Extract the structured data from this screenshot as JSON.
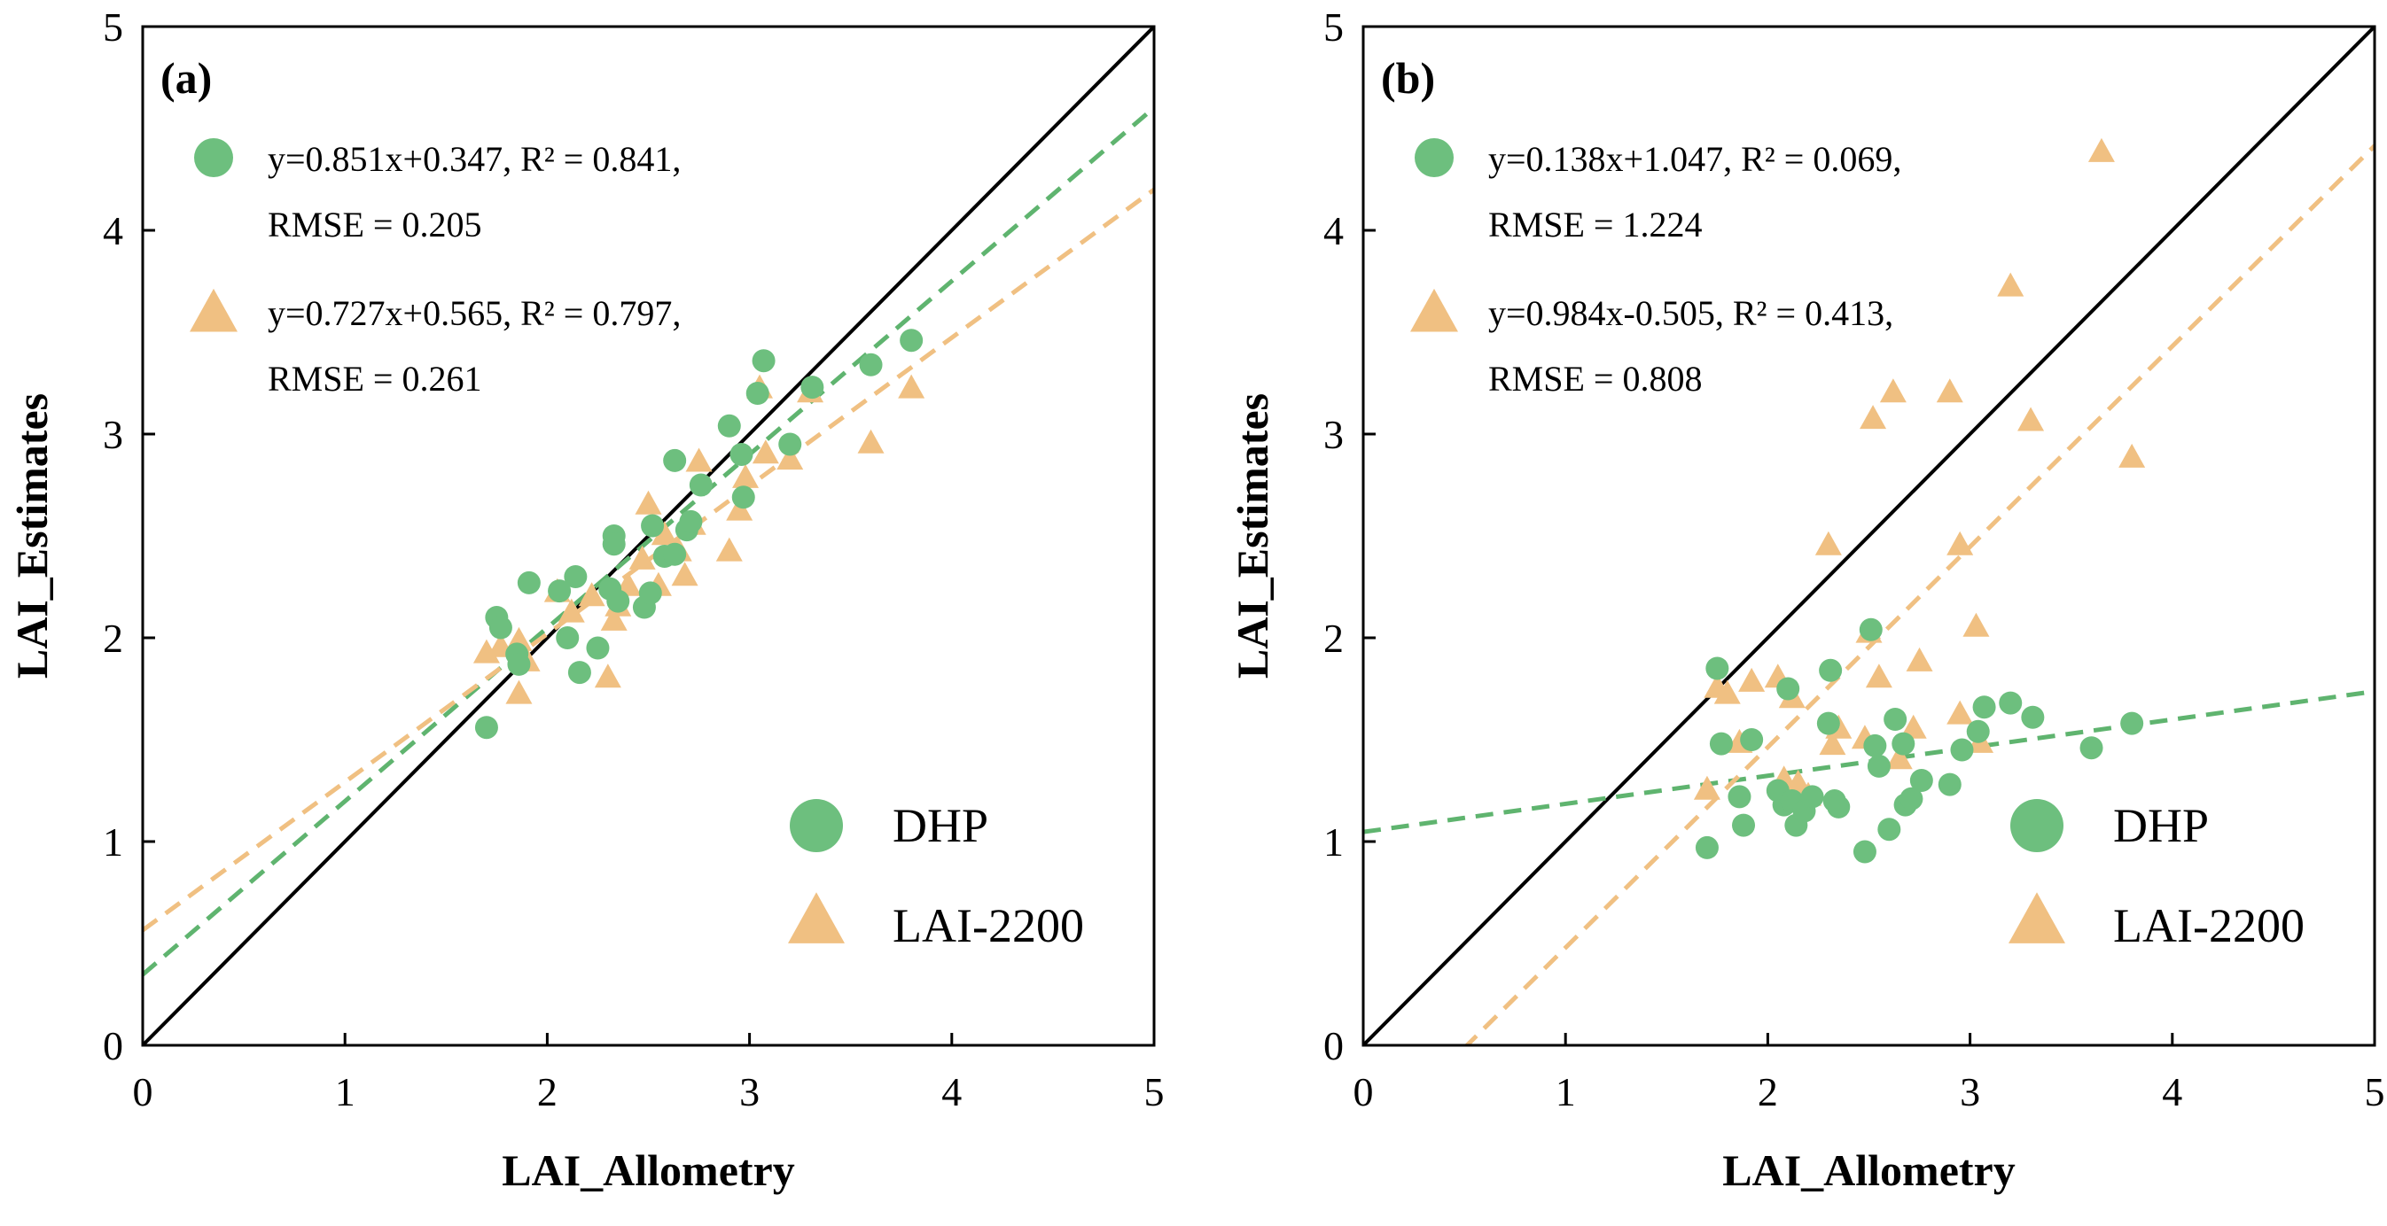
{
  "colors": {
    "dhp": "#6dbf7e",
    "lai2200": "#f0c082",
    "dhp_fit": "#5fb46f",
    "lai2200_fit": "#f0c082",
    "one_to_one": "#000000"
  },
  "legend": {
    "dhp": "DHP",
    "lai2200": "LAI-2200"
  },
  "chart_data": [
    {
      "type": "scatter",
      "panel": "(a)",
      "xlabel": "LAI_Allometry",
      "ylabel": "LAI_Estimates",
      "xlim": [
        0,
        5
      ],
      "ylim": [
        0,
        5
      ],
      "xticks": [
        "0",
        "1",
        "2",
        "3",
        "4",
        "5"
      ],
      "yticks": [
        "0",
        "1",
        "2",
        "3",
        "4",
        "5"
      ],
      "legend_position": "bottom-right",
      "one_to_one_line": true,
      "equations": {
        "dhp": {
          "line1": "y=0.851x+0.347, R² = 0.841,",
          "line2": "RMSE = 0.205",
          "slope": 0.851,
          "intercept": 0.347
        },
        "lai2200": {
          "line1": "y=0.727x+0.565, R² = 0.797,",
          "line2": "RMSE = 0.261",
          "slope": 0.727,
          "intercept": 0.565
        }
      },
      "series": [
        {
          "name": "DHP",
          "marker": "circle",
          "points": [
            [
              1.7,
              1.56
            ],
            [
              1.75,
              2.1
            ],
            [
              1.77,
              2.05
            ],
            [
              1.85,
              1.92
            ],
            [
              1.86,
              1.87
            ],
            [
              1.91,
              2.27
            ],
            [
              2.06,
              2.23
            ],
            [
              2.1,
              2.0
            ],
            [
              2.14,
              2.3
            ],
            [
              2.16,
              1.83
            ],
            [
              2.25,
              1.95
            ],
            [
              2.31,
              2.24
            ],
            [
              2.33,
              2.5
            ],
            [
              2.33,
              2.46
            ],
            [
              2.35,
              2.18
            ],
            [
              2.48,
              2.15
            ],
            [
              2.51,
              2.22
            ],
            [
              2.52,
              2.55
            ],
            [
              2.58,
              2.4
            ],
            [
              2.63,
              2.41
            ],
            [
              2.63,
              2.87
            ],
            [
              2.69,
              2.53
            ],
            [
              2.71,
              2.57
            ],
            [
              2.76,
              2.75
            ],
            [
              2.9,
              3.04
            ],
            [
              2.96,
              2.9
            ],
            [
              2.97,
              2.69
            ],
            [
              3.04,
              3.2
            ],
            [
              3.07,
              3.36
            ],
            [
              3.2,
              2.95
            ],
            [
              3.31,
              3.23
            ],
            [
              3.6,
              3.34
            ],
            [
              3.8,
              3.46
            ]
          ]
        },
        {
          "name": "LAI-2200",
          "marker": "triangle",
          "points": [
            [
              1.7,
              1.92
            ],
            [
              1.77,
              1.95
            ],
            [
              1.86,
              1.72
            ],
            [
              1.86,
              1.98
            ],
            [
              1.9,
              1.88
            ],
            [
              2.05,
              2.22
            ],
            [
              2.12,
              2.12
            ],
            [
              2.22,
              2.2
            ],
            [
              2.3,
              1.8
            ],
            [
              2.33,
              2.08
            ],
            [
              2.35,
              2.15
            ],
            [
              2.4,
              2.25
            ],
            [
              2.47,
              2.38
            ],
            [
              2.5,
              2.65
            ],
            [
              2.55,
              2.25
            ],
            [
              2.58,
              2.5
            ],
            [
              2.65,
              2.42
            ],
            [
              2.68,
              2.3
            ],
            [
              2.72,
              2.55
            ],
            [
              2.75,
              2.86
            ],
            [
              2.9,
              2.42
            ],
            [
              2.95,
              2.62
            ],
            [
              2.98,
              2.78
            ],
            [
              3.05,
              3.22
            ],
            [
              3.08,
              2.9
            ],
            [
              3.2,
              2.87
            ],
            [
              3.3,
              3.2
            ],
            [
              3.6,
              2.95
            ],
            [
              3.8,
              3.22
            ]
          ]
        }
      ]
    },
    {
      "type": "scatter",
      "panel": "(b)",
      "xlabel": "LAI_Allometry",
      "ylabel": "LAI_Estimates",
      "xlim": [
        0,
        5
      ],
      "ylim": [
        0,
        5
      ],
      "xticks": [
        "0",
        "1",
        "2",
        "3",
        "4",
        "5"
      ],
      "yticks": [
        "0",
        "1",
        "2",
        "3",
        "4",
        "5"
      ],
      "legend_position": "bottom-right",
      "one_to_one_line": true,
      "equations": {
        "dhp": {
          "line1": "y=0.138x+1.047, R² = 0.069,",
          "line2": "RMSE = 1.224",
          "slope": 0.138,
          "intercept": 1.047
        },
        "lai2200": {
          "line1": "y=0.984x-0.505, R² = 0.413,",
          "line2": "RMSE = 0.808",
          "slope": 0.984,
          "intercept": -0.505
        }
      },
      "series": [
        {
          "name": "DHP",
          "marker": "circle",
          "points": [
            [
              1.7,
              0.97
            ],
            [
              1.75,
              1.85
            ],
            [
              1.77,
              1.48
            ],
            [
              1.86,
              1.22
            ],
            [
              1.88,
              1.08
            ],
            [
              1.92,
              1.5
            ],
            [
              2.05,
              1.25
            ],
            [
              2.08,
              1.18
            ],
            [
              2.1,
              1.75
            ],
            [
              2.12,
              1.2
            ],
            [
              2.14,
              1.08
            ],
            [
              2.18,
              1.15
            ],
            [
              2.22,
              1.22
            ],
            [
              2.3,
              1.58
            ],
            [
              2.31,
              1.84
            ],
            [
              2.33,
              1.2
            ],
            [
              2.35,
              1.17
            ],
            [
              2.48,
              0.95
            ],
            [
              2.51,
              2.04
            ],
            [
              2.53,
              1.47
            ],
            [
              2.55,
              1.37
            ],
            [
              2.6,
              1.06
            ],
            [
              2.63,
              1.6
            ],
            [
              2.67,
              1.48
            ],
            [
              2.68,
              1.18
            ],
            [
              2.71,
              1.21
            ],
            [
              2.76,
              1.3
            ],
            [
              2.9,
              1.28
            ],
            [
              2.96,
              1.45
            ],
            [
              3.04,
              1.54
            ],
            [
              3.07,
              1.66
            ],
            [
              3.2,
              1.68
            ],
            [
              3.31,
              1.61
            ],
            [
              3.6,
              1.46
            ],
            [
              3.8,
              1.58
            ]
          ]
        },
        {
          "name": "LAI-2200",
          "marker": "triangle",
          "points": [
            [
              1.7,
              1.25
            ],
            [
              1.75,
              1.75
            ],
            [
              1.8,
              1.72
            ],
            [
              1.86,
              1.48
            ],
            [
              1.92,
              1.78
            ],
            [
              2.05,
              1.8
            ],
            [
              2.08,
              1.3
            ],
            [
              2.12,
              1.7
            ],
            [
              2.15,
              1.28
            ],
            [
              2.2,
              1.22
            ],
            [
              2.3,
              2.45
            ],
            [
              2.32,
              1.47
            ],
            [
              2.35,
              1.55
            ],
            [
              2.48,
              1.5
            ],
            [
              2.5,
              2.02
            ],
            [
              2.52,
              3.07
            ],
            [
              2.55,
              1.8
            ],
            [
              2.62,
              3.2
            ],
            [
              2.65,
              1.4
            ],
            [
              2.72,
              1.55
            ],
            [
              2.75,
              1.88
            ],
            [
              2.9,
              3.2
            ],
            [
              2.95,
              2.45
            ],
            [
              2.95,
              1.62
            ],
            [
              3.03,
              2.05
            ],
            [
              3.05,
              1.48
            ],
            [
              3.2,
              3.72
            ],
            [
              3.3,
              3.06
            ],
            [
              3.65,
              4.38
            ],
            [
              3.8,
              2.88
            ]
          ]
        }
      ]
    }
  ]
}
